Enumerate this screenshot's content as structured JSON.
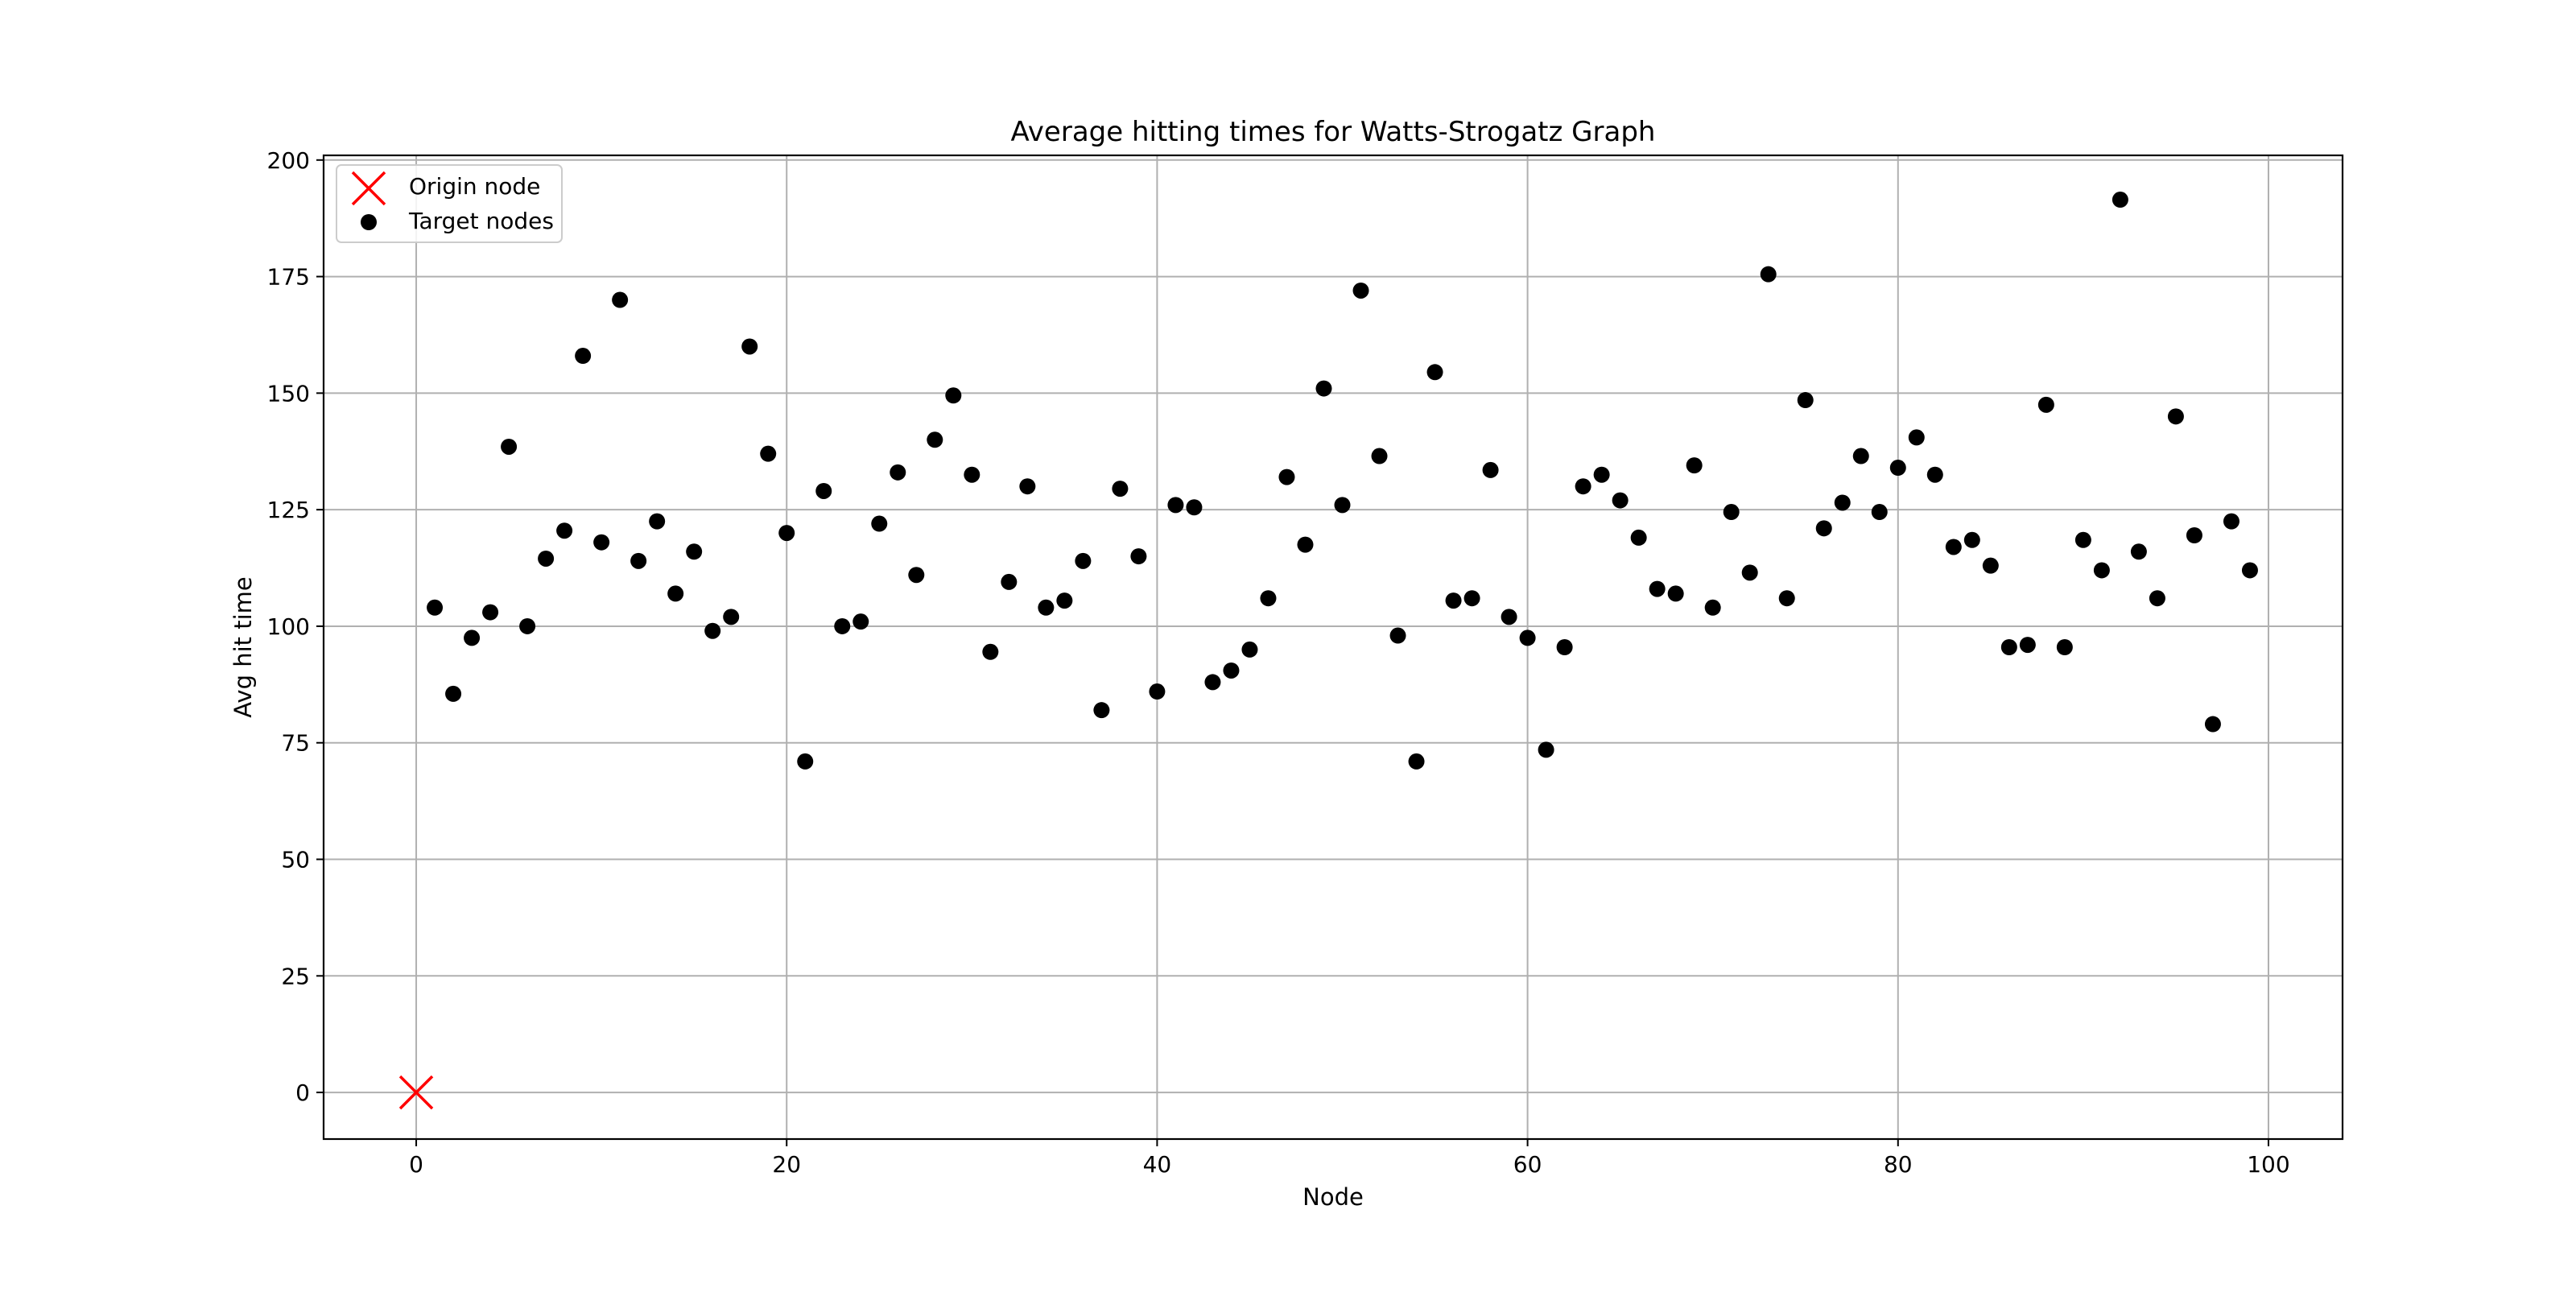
{
  "chart_data": {
    "type": "scatter",
    "title": "Average hitting times for Watts-Strogatz Graph",
    "xlabel": "Node",
    "ylabel": "Avg hit time",
    "xlim": [
      -5,
      104
    ],
    "ylim": [
      -10,
      201
    ],
    "xticks": [
      0,
      20,
      40,
      60,
      80,
      100
    ],
    "yticks": [
      0,
      25,
      50,
      75,
      100,
      125,
      150,
      175,
      200
    ],
    "grid": true,
    "legend_position": "upper-left",
    "series": [
      {
        "name": "Origin node",
        "marker": "x",
        "color": "#ff0000",
        "points": [
          [
            0,
            0
          ]
        ]
      },
      {
        "name": "Target nodes",
        "marker": "circle",
        "color": "#000000",
        "points": [
          [
            1,
            104
          ],
          [
            2,
            85.5
          ],
          [
            3,
            97.5
          ],
          [
            4,
            103
          ],
          [
            5,
            138.5
          ],
          [
            6,
            100
          ],
          [
            7,
            114.5
          ],
          [
            8,
            120.5
          ],
          [
            9,
            158
          ],
          [
            10,
            118
          ],
          [
            11,
            170
          ],
          [
            12,
            114
          ],
          [
            13,
            122.5
          ],
          [
            14,
            107
          ],
          [
            15,
            116
          ],
          [
            16,
            99
          ],
          [
            17,
            102
          ],
          [
            18,
            160
          ],
          [
            19,
            137
          ],
          [
            20,
            120
          ],
          [
            21,
            71
          ],
          [
            22,
            129
          ],
          [
            23,
            100
          ],
          [
            24,
            101
          ],
          [
            25,
            122
          ],
          [
            26,
            133
          ],
          [
            27,
            111
          ],
          [
            28,
            140
          ],
          [
            29,
            149.5
          ],
          [
            30,
            132.5
          ],
          [
            31,
            94.5
          ],
          [
            32,
            109.5
          ],
          [
            33,
            130
          ],
          [
            34,
            104
          ],
          [
            35,
            105.5
          ],
          [
            36,
            114
          ],
          [
            37,
            82
          ],
          [
            38,
            129.5
          ],
          [
            39,
            115
          ],
          [
            40,
            86
          ],
          [
            41,
            126
          ],
          [
            42,
            125.5
          ],
          [
            43,
            88
          ],
          [
            44,
            90.5
          ],
          [
            45,
            95
          ],
          [
            46,
            106
          ],
          [
            47,
            132
          ],
          [
            48,
            117.5
          ],
          [
            49,
            151
          ],
          [
            50,
            126
          ],
          [
            51,
            172
          ],
          [
            52,
            136.5
          ],
          [
            53,
            98
          ],
          [
            54,
            71
          ],
          [
            55,
            154.5
          ],
          [
            56,
            105.5
          ],
          [
            57,
            106
          ],
          [
            58,
            133.5
          ],
          [
            59,
            102
          ],
          [
            60,
            97.5
          ],
          [
            61,
            73.5
          ],
          [
            62,
            95.5
          ],
          [
            63,
            130
          ],
          [
            64,
            132.5
          ],
          [
            65,
            127
          ],
          [
            66,
            119
          ],
          [
            67,
            108
          ],
          [
            68,
            107
          ],
          [
            69,
            134.5
          ],
          [
            70,
            104
          ],
          [
            71,
            124.5
          ],
          [
            72,
            111.5
          ],
          [
            73,
            175.5
          ],
          [
            74,
            106
          ],
          [
            75,
            148.5
          ],
          [
            76,
            121
          ],
          [
            77,
            126.5
          ],
          [
            78,
            136.5
          ],
          [
            79,
            124.5
          ],
          [
            80,
            134
          ],
          [
            81,
            140.5
          ],
          [
            82,
            132.5
          ],
          [
            83,
            117
          ],
          [
            84,
            118.5
          ],
          [
            85,
            113
          ],
          [
            86,
            95.5
          ],
          [
            87,
            96
          ],
          [
            88,
            147.5
          ],
          [
            89,
            95.5
          ],
          [
            90,
            118.5
          ],
          [
            91,
            112
          ],
          [
            92,
            191.5
          ],
          [
            93,
            116
          ],
          [
            94,
            106
          ],
          [
            95,
            145
          ],
          [
            96,
            119.5
          ],
          [
            97,
            79
          ],
          [
            98,
            122.5
          ],
          [
            99,
            112
          ]
        ]
      }
    ]
  }
}
